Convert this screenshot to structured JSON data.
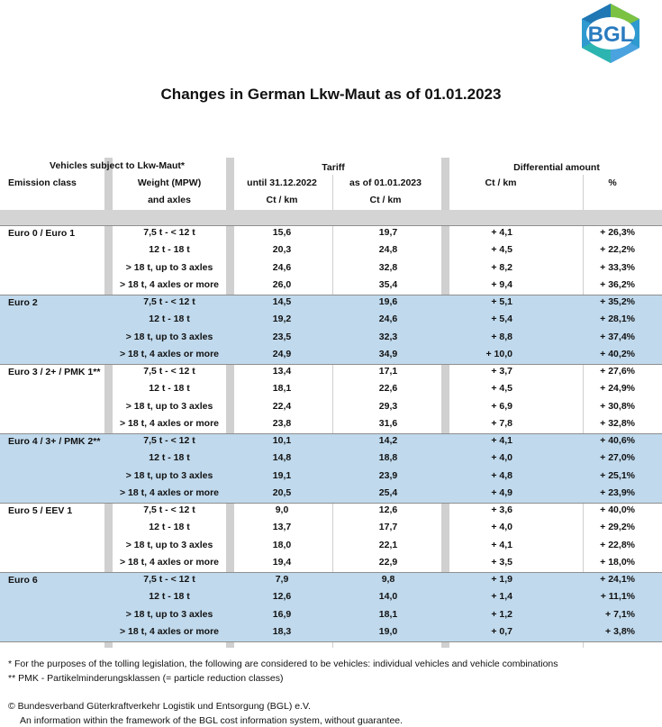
{
  "logo": {
    "text": "BGL"
  },
  "title": "Changes in German Lkw-Maut as of 01.01.2023",
  "headers": {
    "vehicles": "Vehicles subject to Lkw-Maut*",
    "tariff": "Tariff",
    "differential": "Differential amount",
    "emission_class": "Emission class",
    "weight_line1": "Weight (MPW)",
    "weight_line2": "and axles",
    "until_line1": "until 31.12.2022",
    "until_line2": "Ct / km",
    "asof_line1": "as of 01.01.2023",
    "asof_line2": "Ct / km",
    "diff_ct": "Ct / km",
    "diff_pct": "%"
  },
  "groups": [
    {
      "name": "Euro 0 / Euro 1",
      "shaded": false,
      "rows": [
        {
          "weight": "7,5 t - < 12 t",
          "until": "15,6",
          "asof": "19,7",
          "diff": "+ 4,1",
          "pct": "+ 26,3%"
        },
        {
          "weight": "12 t - 18 t",
          "until": "20,3",
          "asof": "24,8",
          "diff": "+ 4,5",
          "pct": "+ 22,2%"
        },
        {
          "weight": "> 18 t, up to 3 axles",
          "until": "24,6",
          "asof": "32,8",
          "diff": "+ 8,2",
          "pct": "+ 33,3%"
        },
        {
          "weight": "> 18 t, 4  axles or more",
          "until": "26,0",
          "asof": "35,4",
          "diff": "+ 9,4",
          "pct": "+ 36,2%"
        }
      ]
    },
    {
      "name": "Euro 2",
      "shaded": true,
      "rows": [
        {
          "weight": "7,5 t - < 12 t",
          "until": "14,5",
          "asof": "19,6",
          "diff": "+ 5,1",
          "pct": "+ 35,2%"
        },
        {
          "weight": "12 t - 18 t",
          "until": "19,2",
          "asof": "24,6",
          "diff": "+ 5,4",
          "pct": "+ 28,1%"
        },
        {
          "weight": "> 18 t, up to 3 axles",
          "until": "23,5",
          "asof": "32,3",
          "diff": "+ 8,8",
          "pct": "+ 37,4%"
        },
        {
          "weight": "> 18 t, 4  axles or more",
          "until": "24,9",
          "asof": "34,9",
          "diff": "+ 10,0",
          "pct": "+ 40,2%"
        }
      ]
    },
    {
      "name": "Euro 3 / 2+ / PMK 1**",
      "shaded": false,
      "rows": [
        {
          "weight": "7,5 t - < 12 t",
          "until": "13,4",
          "asof": "17,1",
          "diff": "+ 3,7",
          "pct": "+ 27,6%"
        },
        {
          "weight": "12 t - 18 t",
          "until": "18,1",
          "asof": "22,6",
          "diff": "+ 4,5",
          "pct": "+ 24,9%"
        },
        {
          "weight": "> 18 t, up to 3 axles",
          "until": "22,4",
          "asof": "29,3",
          "diff": "+ 6,9",
          "pct": "+ 30,8%"
        },
        {
          "weight": "> 18 t, 4  axles or more",
          "until": "23,8",
          "asof": "31,6",
          "diff": "+ 7,8",
          "pct": "+ 32,8%"
        }
      ]
    },
    {
      "name": "Euro 4 / 3+ / PMK 2**",
      "shaded": true,
      "rows": [
        {
          "weight": "7,5 t - < 12 t",
          "until": "10,1",
          "asof": "14,2",
          "diff": "+ 4,1",
          "pct": "+ 40,6%"
        },
        {
          "weight": "12 t - 18 t",
          "until": "14,8",
          "asof": "18,8",
          "diff": "+ 4,0",
          "pct": "+ 27,0%"
        },
        {
          "weight": "> 18 t, up to 3 axles",
          "until": "19,1",
          "asof": "23,9",
          "diff": "+ 4,8",
          "pct": "+ 25,1%"
        },
        {
          "weight": "> 18 t, 4  axles or more",
          "until": "20,5",
          "asof": "25,4",
          "diff": "+ 4,9",
          "pct": "+ 23,9%"
        }
      ]
    },
    {
      "name": "Euro 5 / EEV 1",
      "shaded": false,
      "rows": [
        {
          "weight": "7,5 t - < 12 t",
          "until": "9,0",
          "asof": "12,6",
          "diff": "+ 3,6",
          "pct": "+ 40,0%"
        },
        {
          "weight": "12 t - 18 t",
          "until": "13,7",
          "asof": "17,7",
          "diff": "+ 4,0",
          "pct": "+ 29,2%"
        },
        {
          "weight": "> 18 t, up to 3 axles",
          "until": "18,0",
          "asof": "22,1",
          "diff": "+ 4,1",
          "pct": "+ 22,8%"
        },
        {
          "weight": "> 18 t, 4  axles or more",
          "until": "19,4",
          "asof": "22,9",
          "diff": "+ 3,5",
          "pct": "+ 18,0%"
        }
      ]
    },
    {
      "name": "Euro 6",
      "shaded": true,
      "rows": [
        {
          "weight": "7,5 t - < 12 t",
          "until": "7,9",
          "asof": "9,8",
          "diff": "+ 1,9",
          "pct": "+ 24,1%"
        },
        {
          "weight": "12 t - 18 t",
          "until": "12,6",
          "asof": "14,0",
          "diff": "+ 1,4",
          "pct": "+ 11,1%"
        },
        {
          "weight": "> 18 t, up to 3 axles",
          "until": "16,9",
          "asof": "18,1",
          "diff": "+ 1,2",
          "pct": "+ 7,1%"
        },
        {
          "weight": "> 18 t, 4  axles or more",
          "until": "18,3",
          "asof": "19,0",
          "diff": "+ 0,7",
          "pct": "+ 3,8%"
        }
      ]
    }
  ],
  "footnotes": {
    "note1": "*  For the purposes of the tolling legislation, the following are considered to be vehicles: individual vehicles and vehicle combinations",
    "note2": "** PMK - Partikelminderungsklassen (= particle reduction classes)",
    "copyright": "© Bundesverband Güterkraftverkehr Logistik und Entsorgung (BGL) e.V.",
    "info": "An information within the framework of the BGL cost information system, without guarantee."
  }
}
